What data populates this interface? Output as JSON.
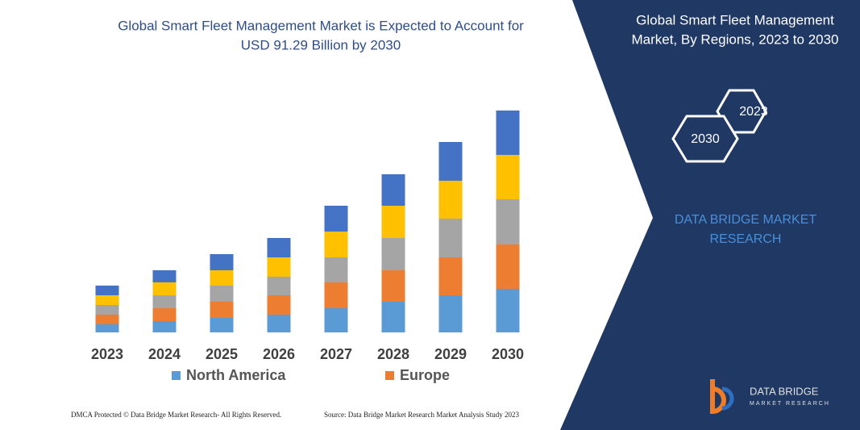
{
  "chart_data": {
    "type": "stacked-bar",
    "title": [
      "Global Smart Fleet Management Market is Expected to Account for",
      "USD 91.29 Billion by 2030"
    ],
    "categories": [
      "2023",
      "2024",
      "2025",
      "2026",
      "2027",
      "2028",
      "2029",
      "2030"
    ],
    "series": [
      {
        "name": "North America",
        "color": "#5b9bd5",
        "values": [
          10,
          14,
          18,
          22,
          30,
          38,
          46,
          54
        ]
      },
      {
        "name": "Europe",
        "color": "#ed7d31",
        "values": [
          12,
          16,
          20,
          24,
          32,
          39,
          47,
          55
        ]
      },
      {
        "color": "#a5a5a5",
        "values": [
          12,
          16,
          20,
          23,
          31,
          40,
          48,
          56
        ]
      },
      {
        "color": "#ffc000",
        "values": [
          12,
          16,
          19,
          24,
          32,
          40,
          47,
          55
        ]
      },
      {
        "color": "#4472c4",
        "values": [
          12,
          15,
          20,
          24,
          32,
          39,
          48,
          55
        ]
      }
    ],
    "ylim": [
      0,
      280
    ]
  },
  "panel": {
    "title": [
      "Global Smart Fleet Management",
      "Market, By Regions, 2023 to 2030"
    ],
    "hexagons": [
      "2023",
      "2030"
    ],
    "brand": [
      "DATA BRIDGE MARKET",
      "RESEARCH"
    ],
    "logo": [
      "DATA BRIDGE",
      "MARKET RESEARCH"
    ]
  },
  "footer": {
    "left": "DMCA Protected © Data Bridge Market Research-  All Rights Reserved.",
    "right": "Source: Data Bridge Market Research  Market Analysis Study 2023"
  }
}
